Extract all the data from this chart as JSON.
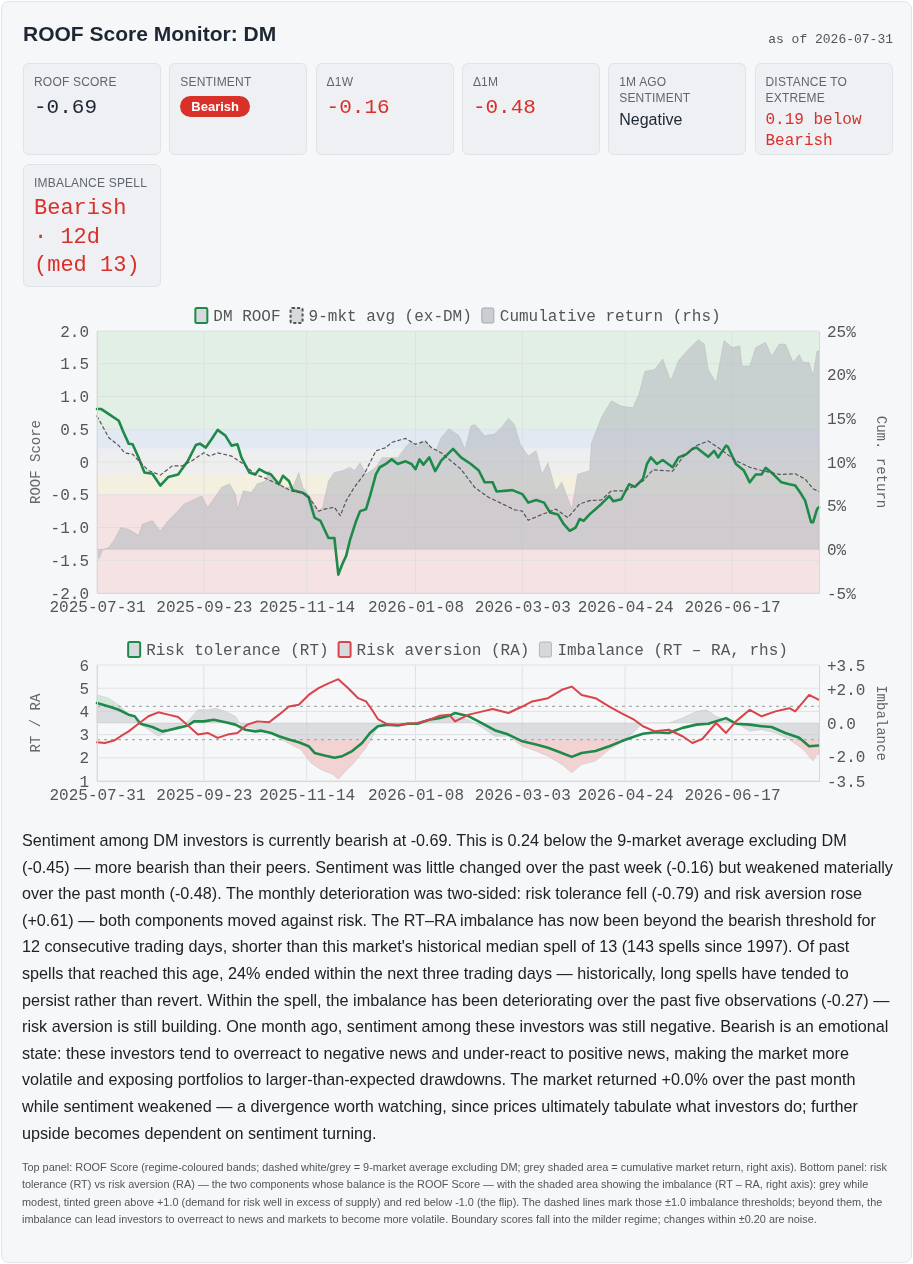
{
  "chart_data": [
    {
      "type": "other",
      "title": "ROOF Score Monitor: DM",
      "subtitle": "as of 2026-07-31",
      "annotations": [
        "ROOF SCORE",
        "-0.69",
        "SENTIMENT",
        "Bearish",
        "Δ1W",
        "-0.16",
        "Δ1M",
        "-0.48",
        "1M AGO SENTIMENT",
        "Negative",
        "DISTANCE TO EXTREME",
        "0.19 below Bearish",
        "IMBALANCE SPELL",
        "Bearish · 12d (med 13)"
      ]
    },
    {
      "type": "line",
      "ylabel": "ROOF Score",
      "y2label": "Cum. return",
      "xlim": [
        "2025-07-31",
        "2026-07-31"
      ],
      "xticks": [
        "2025-07-31",
        "2025-09-23",
        "2025-11-14",
        "2026-01-08",
        "2026-03-03",
        "2026-04-24",
        "2026-06-17"
      ],
      "ylim": [
        -2,
        2
      ],
      "yticks": [
        {
          "value": -2,
          "label": "-2.0"
        },
        -1.5,
        {
          "value": -1,
          "label": "-1.0"
        },
        -0.5,
        0,
        0.5,
        {
          "value": 1,
          "label": "1.0"
        },
        1.5,
        {
          "value": 2,
          "label": "2.0"
        }
      ],
      "y2lim": [
        -5,
        25
      ],
      "y2ticks": [
        {
          "value": -5,
          "label": "-5%"
        },
        {
          "value": 0,
          "label": "0%"
        },
        {
          "value": 5,
          "label": "5%"
        },
        {
          "value": 10,
          "label": "10%"
        },
        {
          "value": 15,
          "label": "15%"
        },
        {
          "value": 20,
          "label": "20%"
        },
        {
          "value": 25,
          "label": "25%"
        }
      ],
      "grid": true,
      "legend": "top",
      "bands": [
        {
          "axis": "y",
          "from": 0.5,
          "to": 2,
          "color": "#e2efe5"
        },
        {
          "axis": "y",
          "from": 0.2,
          "to": 0.5,
          "color": "#e3e9f3"
        },
        {
          "axis": "y",
          "from": -0.2,
          "to": 0.2,
          "color": "#eeeeee"
        },
        {
          "axis": "y",
          "from": -0.5,
          "to": -0.2,
          "color": "#f3f0e0"
        },
        {
          "axis": "y",
          "from": -2,
          "to": -0.5,
          "color": "#f5e3e3"
        }
      ],
      "series": [
        {
          "name": "Cumulative return (rhs)",
          "type": "area",
          "axis": "y2",
          "color": "#b8bbc1",
          "x": [
            "2025-07-31",
            "2025-08-01",
            "2025-08-03",
            "2025-08-06",
            "2025-08-09",
            "2025-08-12",
            "2025-08-16",
            "2025-08-19",
            "2025-08-21",
            "2025-08-23",
            "2025-08-28",
            "2025-09-01",
            "2025-09-05",
            "2025-09-10",
            "2025-09-13",
            "2025-09-17",
            "2025-09-22",
            "2025-09-25",
            "2025-10-02",
            "2025-10-06",
            "2025-10-09",
            "2025-10-10",
            "2025-10-13",
            "2025-10-17",
            "2025-10-20",
            "2025-10-24",
            "2025-10-26",
            "2025-10-30",
            "2025-11-03",
            "2025-11-07",
            "2025-11-10",
            "2025-11-12",
            "2025-11-16",
            "2025-11-20",
            "2025-11-22",
            "2025-11-25",
            "2025-11-28",
            "2025-12-02",
            "2025-12-06",
            "2025-12-08",
            "2025-12-11",
            "2025-12-14",
            "2025-12-19",
            "2025-12-22",
            "2025-12-27",
            "2025-12-30",
            "2026-01-03",
            "2026-01-06",
            "2026-01-09",
            "2026-01-11",
            "2026-01-14",
            "2026-01-18",
            "2026-01-21",
            "2026-01-25",
            "2026-01-30",
            "2026-02-02",
            "2026-02-05",
            "2026-02-07",
            "2026-02-12",
            "2026-02-17",
            "2026-02-21",
            "2026-02-24",
            "2026-02-27",
            "2026-03-02",
            "2026-03-06",
            "2026-03-10",
            "2026-03-13",
            "2026-03-16",
            "2026-03-20",
            "2026-03-23",
            "2026-03-28",
            "2026-03-31",
            "2026-04-06",
            "2026-04-07",
            "2026-04-12",
            "2026-04-17",
            "2026-04-22",
            "2026-04-28",
            "2026-05-01",
            "2026-05-04",
            "2026-05-09",
            "2026-05-13",
            "2026-05-17",
            "2026-05-21",
            "2026-05-26",
            "2026-05-31",
            "2026-06-03",
            "2026-06-05",
            "2026-06-09",
            "2026-06-13",
            "2026-06-17",
            "2026-06-21",
            "2026-06-22",
            "2026-06-26",
            "2026-06-29",
            "2026-07-04",
            "2026-07-07",
            "2026-07-11",
            "2026-07-14",
            "2026-07-18",
            "2026-07-21",
            "2026-07-23",
            "2026-07-26",
            "2026-07-28",
            "2026-07-30",
            "2026-07-31"
          ],
          "values": [
            0.0,
            -1.1,
            0.0,
            0.2,
            1.2,
            2.5,
            2.3,
            1.9,
            1.6,
            2.9,
            3.3,
            2.1,
            3.3,
            4.4,
            5.2,
            5.6,
            6.1,
            4.8,
            7.1,
            7.5,
            6.3,
            4.6,
            6.7,
            6.5,
            7.5,
            7.8,
            9.0,
            7.7,
            7.1,
            7.1,
            8.8,
            7.1,
            5.9,
            4.4,
            4.8,
            7.8,
            8.8,
            9.0,
            9.4,
            9.0,
            9.9,
            8.6,
            9.4,
            10.5,
            10.5,
            10.5,
            11.7,
            12.4,
            11.7,
            12.4,
            12.2,
            11.1,
            12.8,
            13.8,
            13.0,
            11.5,
            14.1,
            14.3,
            13.0,
            13.2,
            14.1,
            15.0,
            14.3,
            12.0,
            10.7,
            11.3,
            8.6,
            9.9,
            6.7,
            7.7,
            4.6,
            8.6,
            9.0,
            12.2,
            15.1,
            17.0,
            16.4,
            16.2,
            17.8,
            20.4,
            20.6,
            21.8,
            19.3,
            21.6,
            22.9,
            24.0,
            23.5,
            20.6,
            19.1,
            23.9,
            23.1,
            23.3,
            21.0,
            21.0,
            23.1,
            23.7,
            22.1,
            23.5,
            23.5,
            21.4,
            22.3,
            21.4,
            21.4,
            19.9,
            22.7,
            22.7
          ]
        },
        {
          "name": "DM ROOF",
          "type": "line",
          "color": "#1e8a4a",
          "x": [
            "2025-07-31",
            "2025-08-02",
            "2025-08-06",
            "2025-08-11",
            "2025-08-13",
            "2025-08-16",
            "2025-08-18",
            "2025-08-21",
            "2025-08-24",
            "2025-08-28",
            "2025-09-01",
            "2025-09-05",
            "2025-09-10",
            "2025-09-15",
            "2025-09-19",
            "2025-09-21",
            "2025-09-24",
            "2025-09-27",
            "2025-09-30",
            "2025-10-04",
            "2025-10-07",
            "2025-10-10",
            "2025-10-12",
            "2025-10-16",
            "2025-10-19",
            "2025-10-21",
            "2025-10-24",
            "2025-10-27",
            "2025-10-31",
            "2025-11-02",
            "2025-11-05",
            "2025-11-07",
            "2025-11-12",
            "2025-11-15",
            "2025-11-18",
            "2025-11-21",
            "2025-11-25",
            "2025-11-28",
            "2025-11-30",
            "2025-12-02",
            "2025-12-04",
            "2025-12-06",
            "2025-12-09",
            "2025-12-11",
            "2025-12-14",
            "2025-12-16",
            "2025-12-19",
            "2025-12-21",
            "2025-12-24",
            "2025-12-27",
            "2025-12-30",
            "2026-01-03",
            "2026-01-06",
            "2026-01-08",
            "2026-01-10",
            "2026-01-12",
            "2026-01-15",
            "2026-01-18",
            "2026-01-21",
            "2026-01-27",
            "2026-01-31",
            "2026-02-05",
            "2026-02-09",
            "2026-02-12",
            "2026-02-16",
            "2026-02-18",
            "2026-02-26",
            "2026-03-03",
            "2026-03-06",
            "2026-03-10",
            "2026-03-14",
            "2026-03-17",
            "2026-03-21",
            "2026-03-24",
            "2026-03-27",
            "2026-03-30",
            "2026-04-01",
            "2026-04-03",
            "2026-04-06",
            "2026-04-09",
            "2026-04-12",
            "2026-04-16",
            "2026-04-18",
            "2026-04-22",
            "2026-04-26",
            "2026-04-29",
            "2026-05-03",
            "2026-05-05",
            "2026-05-07",
            "2026-05-10",
            "2026-05-13",
            "2026-05-18",
            "2026-05-21",
            "2026-05-25",
            "2026-05-28",
            "2026-05-30",
            "2026-06-05",
            "2026-06-08",
            "2026-06-10",
            "2026-06-14",
            "2026-06-15",
            "2026-06-19",
            "2026-06-23",
            "2026-06-26",
            "2026-06-29",
            "2026-07-02",
            "2026-07-04",
            "2026-07-07",
            "2026-07-12",
            "2026-07-16",
            "2026-07-19",
            "2026-07-22",
            "2026-07-24",
            "2026-07-27",
            "2026-07-28",
            "2026-07-30",
            "2026-07-31"
          ],
          "values": [
            0.81,
            0.81,
            0.73,
            0.63,
            0.48,
            0.28,
            0.27,
            0.07,
            -0.16,
            -0.18,
            -0.36,
            -0.23,
            -0.19,
            0.02,
            0.26,
            0.28,
            0.22,
            0.35,
            0.49,
            0.4,
            0.25,
            0.27,
            0.07,
            -0.16,
            -0.19,
            -0.11,
            -0.16,
            -0.19,
            -0.34,
            -0.21,
            -0.29,
            -0.43,
            -0.47,
            -0.54,
            -0.85,
            -0.9,
            -1.16,
            -1.16,
            -1.72,
            -1.56,
            -1.43,
            -1.18,
            -0.9,
            -0.75,
            -0.72,
            -0.52,
            -0.19,
            -0.08,
            -0.03,
            0.04,
            -0.03,
            0.01,
            -0.03,
            -0.11,
            0.04,
            -0.04,
            0.07,
            -0.14,
            0.02,
            0.2,
            0.07,
            -0.03,
            -0.13,
            -0.31,
            -0.31,
            -0.45,
            -0.43,
            -0.49,
            -0.62,
            -0.58,
            -0.62,
            -0.77,
            -0.8,
            -0.95,
            -1.05,
            -1.0,
            -0.87,
            -0.9,
            -0.8,
            -0.72,
            -0.64,
            -0.52,
            -0.6,
            -0.57,
            -0.34,
            -0.38,
            -0.26,
            -0.03,
            0.07,
            -0.03,
            0.03,
            -0.08,
            0.07,
            0.12,
            0.2,
            0.22,
            0.08,
            0.17,
            0.07,
            0.25,
            0.23,
            -0.03,
            -0.13,
            -0.31,
            -0.19,
            -0.19,
            -0.09,
            -0.16,
            -0.31,
            -0.34,
            -0.36,
            -0.49,
            -0.59,
            -0.92,
            -0.92,
            -0.72,
            -0.69
          ]
        },
        {
          "name": "9-mkt avg (ex-DM)",
          "type": "line",
          "line_style": "dashed",
          "color": "#555555",
          "x": [
            "2025-07-31",
            "2025-08-06",
            "2025-08-11",
            "2025-08-14",
            "2025-08-18",
            "2025-08-21",
            "2025-08-26",
            "2025-09-01",
            "2025-09-07",
            "2025-09-12",
            "2025-09-17",
            "2025-09-23",
            "2025-09-26",
            "2025-09-30",
            "2025-10-07",
            "2025-10-13",
            "2025-10-19",
            "2025-10-25",
            "2025-11-01",
            "2025-11-06",
            "2025-11-14",
            "2025-11-20",
            "2025-11-23",
            "2025-11-28",
            "2025-12-01",
            "2025-12-04",
            "2025-12-08",
            "2025-12-13",
            "2025-12-19",
            "2025-12-24",
            "2025-12-27",
            "2026-01-03",
            "2026-01-08",
            "2026-01-13",
            "2026-01-16",
            "2026-01-21",
            "2026-01-31",
            "2026-02-07",
            "2026-02-14",
            "2026-02-21",
            "2026-02-27",
            "2026-03-03",
            "2026-03-06",
            "2026-03-13",
            "2026-03-20",
            "2026-03-26",
            "2026-04-01",
            "2026-04-06",
            "2026-04-12",
            "2026-04-17",
            "2026-04-24",
            "2026-05-03",
            "2026-05-08",
            "2026-05-18",
            "2026-05-23",
            "2026-05-30",
            "2026-06-05",
            "2026-06-10",
            "2026-06-19",
            "2026-06-26",
            "2026-07-02",
            "2026-07-11",
            "2026-07-19",
            "2026-07-24",
            "2026-07-28",
            "2026-07-31"
          ],
          "values": [
            0.7,
            0.37,
            0.25,
            0.14,
            0.12,
            0.02,
            -0.13,
            -0.2,
            -0.06,
            -0.06,
            0.02,
            0.14,
            0.09,
            0.14,
            0.09,
            -0.03,
            -0.19,
            -0.26,
            -0.36,
            -0.44,
            -0.49,
            -0.75,
            -0.72,
            -0.69,
            -0.82,
            -0.59,
            -0.39,
            -0.19,
            0.17,
            0.22,
            0.3,
            0.36,
            0.27,
            0.32,
            0.22,
            0.14,
            -0.11,
            -0.39,
            -0.54,
            -0.64,
            -0.73,
            -0.75,
            -0.89,
            -0.8,
            -0.72,
            -0.85,
            -0.64,
            -0.59,
            -0.58,
            -0.44,
            -0.44,
            -0.29,
            -0.12,
            -0.14,
            0.07,
            0.25,
            0.32,
            0.22,
            0.02,
            -0.08,
            -0.13,
            -0.19,
            -0.18,
            -0.26,
            -0.41,
            -0.45
          ]
        }
      ]
    },
    {
      "type": "line",
      "ylabel": "RT / RA",
      "y2label": "Imbalance",
      "xlim": [
        "2025-07-31",
        "2026-07-31"
      ],
      "xticks": [
        "2025-07-31",
        "2025-09-23",
        "2025-11-14",
        "2026-01-08",
        "2026-03-03",
        "2026-04-24",
        "2026-06-17"
      ],
      "ylim": [
        1,
        6
      ],
      "yticks": [
        1,
        2,
        3,
        4,
        5,
        6
      ],
      "y2lim": [
        -3.5,
        3.5
      ],
      "y2ticks": [
        -3.5,
        {
          "value": -2,
          "label": "-2.0"
        },
        {
          "value": 0,
          "label": "0.0"
        },
        {
          "value": 2,
          "label": "+2.0"
        },
        {
          "value": 3.5,
          "label": "+3.5"
        }
      ],
      "grid": true,
      "legend": "top",
      "ref_lines": [
        {
          "axis": "y2",
          "value": 1.0,
          "color": "#a9abaf",
          "line_style": "dashed"
        },
        {
          "axis": "y2",
          "value": -1.0,
          "color": "#a9abaf",
          "line_style": "dashed"
        }
      ],
      "series": [
        {
          "name": "Imbalance (RT – RA, rhs)",
          "type": "area",
          "axis": "y2",
          "color": "#c9cbcf",
          "x": [
            "2025-07-31",
            "2025-08-06",
            "2025-08-12",
            "2025-08-17",
            "2025-08-21",
            "2025-08-26",
            "2025-08-31",
            "2025-09-05",
            "2025-09-10",
            "2025-09-15",
            "2025-09-20",
            "2025-09-25",
            "2025-09-29",
            "2025-10-04",
            "2025-10-09",
            "2025-10-12",
            "2025-10-17",
            "2025-10-22",
            "2025-10-27",
            "2025-11-01",
            "2025-11-06",
            "2025-11-11",
            "2025-11-16",
            "2025-11-21",
            "2025-11-27",
            "2025-11-30",
            "2025-12-03",
            "2025-12-08",
            "2025-12-14",
            "2025-12-17",
            "2025-12-20",
            "2025-12-25",
            "2026-01-01",
            "2026-01-08",
            "2026-01-15",
            "2026-01-21",
            "2026-01-28",
            "2026-02-04",
            "2026-02-11",
            "2026-02-17",
            "2026-02-24",
            "2026-03-03",
            "2026-03-10",
            "2026-03-16",
            "2026-03-23",
            "2026-03-28",
            "2026-04-02",
            "2026-04-09",
            "2026-04-16",
            "2026-04-22",
            "2026-04-28",
            "2026-05-03",
            "2026-05-09",
            "2026-05-16",
            "2026-05-23",
            "2026-05-30",
            "2026-06-04",
            "2026-06-09",
            "2026-06-14",
            "2026-06-19",
            "2026-06-26",
            "2026-07-02",
            "2026-07-09",
            "2026-07-16",
            "2026-07-23",
            "2026-07-28",
            "2026-07-30",
            "2026-07-31"
          ],
          "values": [
            1.7,
            1.5,
            1.0,
            0.4,
            0.0,
            -0.4,
            -0.8,
            -0.5,
            -0.2,
            0.1,
            0.8,
            0.8,
            0.9,
            0.7,
            0.4,
            -0.2,
            -0.3,
            -0.4,
            -0.6,
            -1.0,
            -1.3,
            -1.6,
            -2.4,
            -2.8,
            -3.1,
            -3.4,
            -3.0,
            -2.4,
            -1.5,
            -0.9,
            -0.2,
            0.0,
            0.0,
            0.0,
            0.1,
            0.2,
            0.4,
            0.2,
            -0.3,
            -0.8,
            -0.8,
            -1.4,
            -1.7,
            -2.0,
            -2.5,
            -3.0,
            -2.5,
            -2.3,
            -1.6,
            -1.2,
            -0.6,
            0.0,
            0.0,
            0.0,
            0.3,
            0.7,
            0.8,
            0.4,
            0.2,
            0.0,
            -0.5,
            -0.4,
            -0.6,
            -1.0,
            -1.6,
            -2.3,
            -1.9,
            -1.9
          ]
        },
        {
          "name": "Risk tolerance (RT)",
          "type": "line",
          "color": "#1e8a4a",
          "x": [
            "2025-07-31",
            "2025-08-06",
            "2025-08-11",
            "2025-08-16",
            "2025-08-19",
            "2025-08-22",
            "2025-08-28",
            "2025-09-02",
            "2025-09-05",
            "2025-09-10",
            "2025-09-15",
            "2025-09-18",
            "2025-09-23",
            "2025-09-28",
            "2025-10-04",
            "2025-10-09",
            "2025-10-14",
            "2025-10-19",
            "2025-10-22",
            "2025-10-27",
            "2025-10-31",
            "2025-11-05",
            "2025-11-10",
            "2025-11-15",
            "2025-11-18",
            "2025-11-23",
            "2025-11-28",
            "2025-12-02",
            "2025-12-07",
            "2025-12-12",
            "2025-12-16",
            "2025-12-20",
            "2025-12-25",
            "2025-12-30",
            "2026-01-04",
            "2026-01-09",
            "2026-01-15",
            "2026-01-20",
            "2026-01-25",
            "2026-01-28",
            "2026-02-04",
            "2026-02-11",
            "2026-02-17",
            "2026-02-24",
            "2026-03-03",
            "2026-03-10",
            "2026-03-16",
            "2026-03-23",
            "2026-03-28",
            "2026-04-02",
            "2026-04-09",
            "2026-04-16",
            "2026-04-22",
            "2026-04-28",
            "2026-05-03",
            "2026-05-09",
            "2026-05-16",
            "2026-05-23",
            "2026-05-30",
            "2026-06-05",
            "2026-06-14",
            "2026-06-19",
            "2026-06-26",
            "2026-07-02",
            "2026-07-07",
            "2026-07-14",
            "2026-07-21",
            "2026-07-26",
            "2026-07-31"
          ],
          "values": [
            4.36,
            4.21,
            4.07,
            3.86,
            3.79,
            3.47,
            3.33,
            3.14,
            3.19,
            3.29,
            3.39,
            3.57,
            3.57,
            3.64,
            3.53,
            3.43,
            3.21,
            3.14,
            3.17,
            3.07,
            2.93,
            2.79,
            2.67,
            2.5,
            2.21,
            2.1,
            2.0,
            2.07,
            2.29,
            2.64,
            3.07,
            3.36,
            3.43,
            3.39,
            3.47,
            3.47,
            3.64,
            3.71,
            3.81,
            3.93,
            3.79,
            3.47,
            3.19,
            3.0,
            2.71,
            2.57,
            2.43,
            2.21,
            2.04,
            2.21,
            2.29,
            2.5,
            2.71,
            2.9,
            3.04,
            3.1,
            3.07,
            3.29,
            3.43,
            3.47,
            3.71,
            3.47,
            3.43,
            3.36,
            3.33,
            3.07,
            2.86,
            2.5,
            2.53
          ]
        },
        {
          "name": "Risk aversion (RA)",
          "type": "line",
          "color": "#d9434a",
          "x": [
            "2025-07-31",
            "2025-08-04",
            "2025-08-09",
            "2025-08-12",
            "2025-08-16",
            "2025-08-21",
            "2025-08-26",
            "2025-08-31",
            "2025-09-05",
            "2025-09-10",
            "2025-09-15",
            "2025-09-20",
            "2025-09-25",
            "2025-09-30",
            "2025-10-05",
            "2025-10-10",
            "2025-10-15",
            "2025-10-20",
            "2025-10-26",
            "2025-10-31",
            "2025-11-05",
            "2025-11-10",
            "2025-11-15",
            "2025-11-20",
            "2025-11-25",
            "2025-11-30",
            "2025-12-05",
            "2025-12-10",
            "2025-12-14",
            "2025-12-17",
            "2025-12-20",
            "2025-12-25",
            "2025-12-30",
            "2026-01-04",
            "2026-01-09",
            "2026-01-15",
            "2026-01-20",
            "2026-01-25",
            "2026-01-28",
            "2026-02-04",
            "2026-02-11",
            "2026-02-16",
            "2026-02-24",
            "2026-03-03",
            "2026-03-08",
            "2026-03-16",
            "2026-03-23",
            "2026-03-28",
            "2026-04-02",
            "2026-04-09",
            "2026-04-16",
            "2026-04-22",
            "2026-04-28",
            "2026-05-03",
            "2026-05-09",
            "2026-05-16",
            "2026-05-23",
            "2026-05-28",
            "2026-06-02",
            "2026-06-09",
            "2026-06-14",
            "2026-06-19",
            "2026-06-26",
            "2026-07-02",
            "2026-07-09",
            "2026-07-16",
            "2026-07-19",
            "2026-07-26",
            "2026-07-31"
          ],
          "values": [
            2.67,
            2.64,
            2.76,
            2.93,
            3.14,
            3.47,
            3.79,
            3.96,
            3.86,
            3.76,
            3.39,
            3.0,
            3.07,
            2.86,
            3.0,
            3.07,
            3.43,
            3.57,
            3.53,
            3.86,
            4.21,
            4.29,
            4.71,
            5.0,
            5.21,
            5.39,
            5.0,
            4.57,
            4.43,
            4.07,
            3.67,
            3.43,
            3.43,
            3.47,
            3.5,
            3.64,
            3.81,
            3.86,
            3.57,
            3.86,
            4.0,
            4.1,
            3.93,
            4.21,
            4.43,
            4.57,
            4.93,
            5.07,
            4.71,
            4.57,
            4.21,
            3.93,
            3.67,
            3.36,
            3.14,
            3.21,
            2.93,
            2.64,
            2.81,
            3.5,
            3.07,
            3.57,
            4.07,
            3.79,
            4.0,
            4.14,
            4.0,
            4.71,
            4.5
          ]
        }
      ]
    },
    {
      "type": "other",
      "annotations": [
        "Sentiment among DM investors is currently bearish at -0.69. This is 0.24 below the 9-market average excluding DM (-0.45) — more bearish than their peers. Sentiment was little changed over the past week (-0.16) but weakened materially over the past month (-0.48). The monthly deterioration was two-sided: risk tolerance fell (-0.79) and risk aversion rose (+0.61) — both components moved against risk. The RT–RA imbalance has now been beyond the bearish threshold for 12 consecutive trading days, shorter than this market's historical median spell of 13 (143 spells since 1997). Of past spells that reached this age, 24% ended within the next three trading days — historically, long spells have tended to persist rather than revert. Within the spell, the imbalance has been deteriorating over the past five observations (-0.27) — risk aversion is still building. One month ago, sentiment among these investors was still negative. Bearish is an emotional state: these investors tend to overreact to negative news and under-react to positive news, making the market more volatile and exposing portfolios to larger-than-expected drawdowns. The market returned +0.0% over the past month while sentiment weakened — a divergence worth watching, since prices ultimately tabulate what investors do; further upside becomes dependent on sentiment turning.",
        "Top panel: ROOF Score (regime-coloured bands; dashed white/grey = 9-market average excluding DM; grey shaded area = cumulative market return, right axis). Bottom panel: risk tolerance (RT) vs risk aversion (RA) — the two components whose balance is the ROOF Score — with the shaded area showing the imbalance (RT – RA, right axis): grey while modest, tinted green above +1.0 (demand for risk well in excess of supply) and red below -1.0 (the flip). The dashed lines mark those ±1.0 imbalance thresholds; beyond them, the imbalance can lead investors to overreact to news and markets to become more volatile. Boundary scores fall into the milder regime; changes within ±0.20 are noise."
      ]
    }
  ]
}
